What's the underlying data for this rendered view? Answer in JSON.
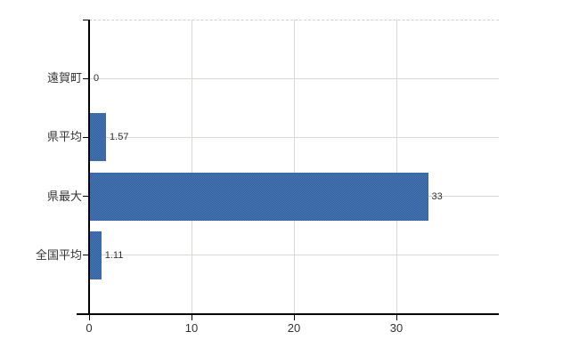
{
  "chart_data": {
    "type": "bar",
    "orientation": "horizontal",
    "title": "",
    "xlabel": "",
    "ylabel": "",
    "categories": [
      "遠賀町",
      "県平均",
      "県最大",
      "全国平均"
    ],
    "values": [
      0,
      1.57,
      33,
      1.11
    ],
    "value_labels": [
      "0",
      "1.57",
      "33",
      "1.11"
    ],
    "xlim": [
      0,
      40
    ],
    "xticks": [
      0,
      10,
      20,
      30
    ],
    "xtick_labels": [
      "0",
      "10",
      "20",
      "30"
    ],
    "grid": true,
    "legend": false,
    "colors": {
      "bar": "#3E6FAE",
      "bar_dither": [
        "#4474B5",
        "#35619D"
      ],
      "gridline": "#D6DAD2",
      "plot_top_border": "#CFCFCF",
      "axis": "#000000",
      "text": "#333333",
      "background": "#FFFFFF"
    }
  }
}
